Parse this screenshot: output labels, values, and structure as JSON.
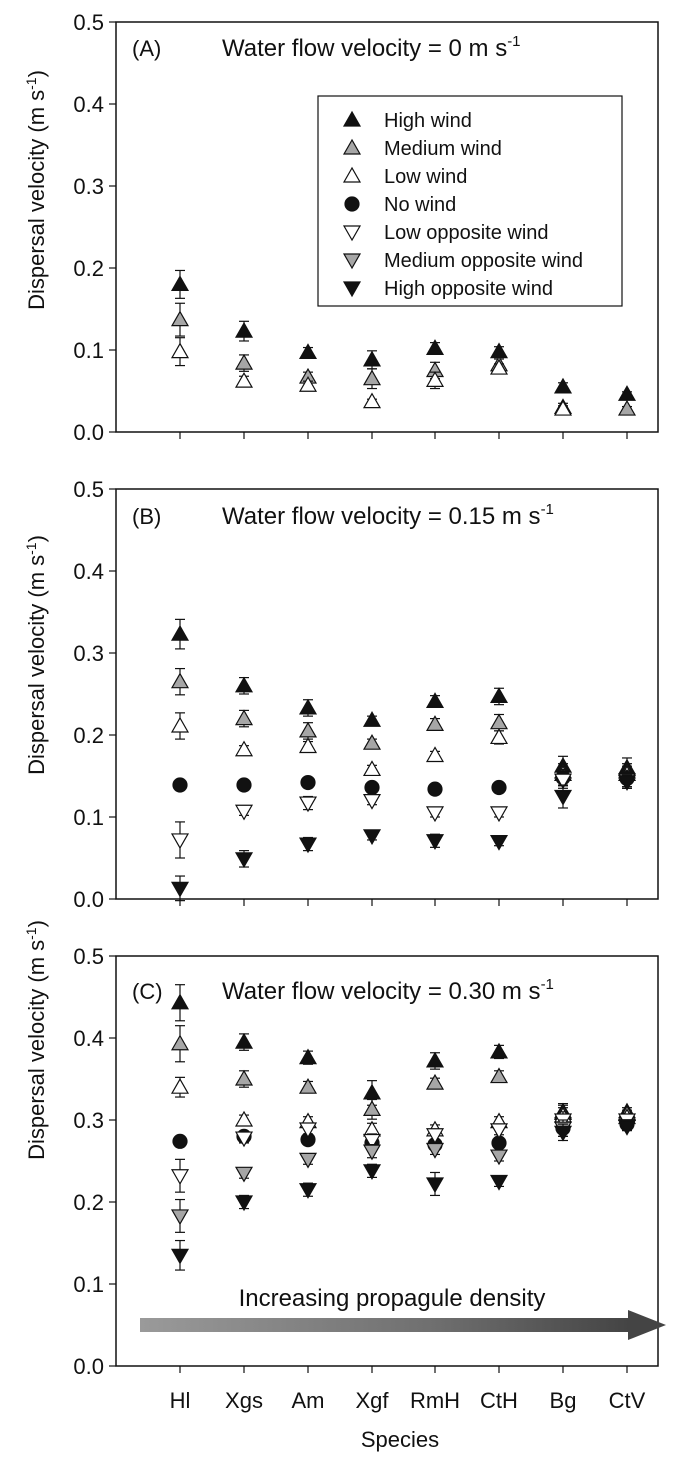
{
  "species_axis_label": "Species",
  "y_axis_label": "Dispersal velocity (m s",
  "y_axis_label_sup": "-1",
  "y_axis_label_tail": ")",
  "legend": {
    "entries": [
      {
        "key": "high_wind",
        "label": "High wind",
        "marker": "triangle-up",
        "color": "#111111"
      },
      {
        "key": "medium_wind",
        "label": "Medium wind",
        "marker": "triangle-up",
        "color": "#a6a6a6"
      },
      {
        "key": "low_wind",
        "label": "Low wind",
        "marker": "triangle-up",
        "color": "#ffffff"
      },
      {
        "key": "no_wind",
        "label": "No wind",
        "marker": "circle",
        "color": "#111111"
      },
      {
        "key": "low_opposite",
        "label": "Low opposite wind",
        "marker": "triangle-down",
        "color": "#ffffff"
      },
      {
        "key": "medium_opposite",
        "label": "Medium opposite wind",
        "marker": "triangle-down",
        "color": "#a6a6a6"
      },
      {
        "key": "high_opposite",
        "label": "High opposite wind",
        "marker": "triangle-down",
        "color": "#111111"
      }
    ]
  },
  "arrow_annotation": "Increasing propagule density",
  "chart_data": [
    {
      "type": "scatter",
      "panel_label": "(A)",
      "title": "Water flow velocity = 0 m s",
      "title_sup": "-1",
      "categories": [
        "Hl",
        "Xgs",
        "Am",
        "Xgf",
        "RmH",
        "CtH",
        "Bg",
        "CtV"
      ],
      "ylim": [
        0,
        0.5
      ],
      "yticks": [
        "0.0",
        "0.1",
        "0.2",
        "0.3",
        "0.4",
        "0.5"
      ],
      "series": [
        {
          "name": "High wind",
          "key": "high_wind",
          "values": [
            0.18,
            0.123,
            0.097,
            0.088,
            0.102,
            0.098,
            0.055,
            0.046
          ],
          "errors": [
            0.017,
            0.012,
            0.006,
            0.011,
            0.007,
            0.006,
            0.005,
            0.003
          ]
        },
        {
          "name": "Medium wind",
          "key": "medium_wind",
          "values": [
            0.137,
            0.084,
            0.067,
            0.065,
            0.075,
            0.082,
            0.03,
            0.028
          ],
          "errors": [
            0.02,
            0.01,
            0.006,
            0.012,
            0.01,
            0.007,
            0.005,
            0.003
          ]
        },
        {
          "name": "Low wind",
          "key": "low_wind",
          "values": [
            0.098,
            0.062,
            0.057,
            0.037,
            0.063,
            0.078,
            0.028,
            null
          ],
          "errors": [
            0.017,
            0.006,
            0.005,
            0.003,
            0.01,
            0.005,
            0.004,
            null
          ]
        }
      ]
    },
    {
      "type": "scatter",
      "panel_label": "(B)",
      "title": "Water flow velocity = 0.15 m s",
      "title_sup": "-1",
      "categories": [
        "Hl",
        "Xgs",
        "Am",
        "Xgf",
        "RmH",
        "CtH",
        "Bg",
        "CtV"
      ],
      "ylim": [
        0,
        0.5
      ],
      "yticks": [
        "0.0",
        "0.1",
        "0.2",
        "0.3",
        "0.4",
        "0.5"
      ],
      "series": [
        {
          "name": "High wind",
          "key": "high_wind",
          "values": [
            0.323,
            0.26,
            0.233,
            0.218,
            0.241,
            0.247,
            0.162,
            0.16
          ],
          "errors": [
            0.018,
            0.01,
            0.01,
            0.005,
            0.007,
            0.01,
            0.012,
            0.012
          ]
        },
        {
          "name": "Medium wind",
          "key": "medium_wind",
          "values": [
            0.265,
            0.22,
            0.205,
            0.19,
            0.213,
            0.215,
            0.155,
            0.155
          ],
          "errors": [
            0.016,
            0.01,
            0.01,
            0.005,
            0.007,
            0.01,
            0.01,
            0.01
          ]
        },
        {
          "name": "Low wind",
          "key": "low_wind",
          "values": [
            0.211,
            0.182,
            0.186,
            0.158,
            0.175,
            0.197,
            0.152,
            0.152
          ],
          "errors": [
            0.016,
            0.005,
            0.006,
            0.005,
            0.005,
            0.008,
            0.01,
            0.01
          ]
        },
        {
          "name": "No wind",
          "key": "no_wind",
          "values": [
            0.139,
            0.139,
            0.142,
            0.136,
            0.134,
            0.136,
            0.148,
            0.147
          ],
          "errors": [
            0.005,
            0.005,
            0.005,
            0.005,
            0.005,
            0.005,
            0.01,
            0.01
          ]
        },
        {
          "name": "Low opposite wind",
          "key": "low_opposite",
          "values": [
            0.072,
            0.107,
            0.117,
            0.12,
            0.105,
            0.105,
            0.145,
            0.145
          ],
          "errors": [
            0.022,
            0.005,
            0.008,
            0.005,
            0.005,
            0.005,
            0.01,
            0.01
          ]
        },
        {
          "name": "High opposite wind",
          "key": "high_opposite",
          "values": [
            0.013,
            0.049,
            0.067,
            0.077,
            0.071,
            0.07,
            0.125,
            0.143
          ],
          "errors": [
            0.015,
            0.01,
            0.008,
            0.005,
            0.008,
            0.005,
            0.014,
            0.008
          ]
        }
      ]
    },
    {
      "type": "scatter",
      "panel_label": "(C)",
      "title": "Water flow velocity = 0.30 m s",
      "title_sup": "-1",
      "categories": [
        "Hl",
        "Xgs",
        "Am",
        "Xgf",
        "RmH",
        "CtH",
        "Bg",
        "CtV"
      ],
      "ylim": [
        0,
        0.5
      ],
      "yticks": [
        "0.0",
        "0.1",
        "0.2",
        "0.3",
        "0.4",
        "0.5"
      ],
      "series": [
        {
          "name": "High wind",
          "key": "high_wind",
          "values": [
            0.443,
            0.395,
            0.376,
            0.333,
            0.372,
            0.383,
            0.31,
            0.31
          ],
          "errors": [
            0.022,
            0.01,
            0.008,
            0.015,
            0.01,
            0.008,
            0.01,
            0.005
          ]
        },
        {
          "name": "Medium wind",
          "key": "medium_wind",
          "values": [
            0.393,
            0.35,
            0.34,
            0.313,
            0.345,
            0.353,
            0.308,
            0.307
          ],
          "errors": [
            0.022,
            0.01,
            0.007,
            0.012,
            0.006,
            0.007,
            0.01,
            0.005
          ]
        },
        {
          "name": "Low wind",
          "key": "low_wind",
          "values": [
            0.34,
            0.3,
            0.298,
            0.288,
            0.288,
            0.298,
            0.305,
            0.303
          ],
          "errors": [
            0.012,
            0.006,
            0.006,
            0.008,
            0.006,
            0.006,
            0.01,
            0.005
          ]
        },
        {
          "name": "No wind",
          "key": "no_wind",
          "values": [
            0.274,
            0.28,
            0.276,
            0.272,
            0.27,
            0.272,
            0.29,
            0.295
          ],
          "errors": [
            0.006,
            0.006,
            0.006,
            0.006,
            0.006,
            0.006,
            0.01,
            0.005
          ]
        },
        {
          "name": "Low opposite wind",
          "key": "low_opposite",
          "values": [
            0.232,
            0.278,
            0.289,
            0.275,
            0.282,
            0.288,
            0.3,
            0.3
          ],
          "errors": [
            0.02,
            0.006,
            0.006,
            0.008,
            0.006,
            0.006,
            0.01,
            0.005
          ]
        },
        {
          "name": "Medium opposite wind",
          "key": "medium_opposite",
          "values": [
            0.183,
            0.235,
            0.252,
            0.262,
            0.264,
            0.256,
            0.29,
            0.293
          ],
          "errors": [
            0.02,
            0.006,
            0.006,
            0.008,
            0.006,
            0.006,
            0.01,
            0.005
          ]
        },
        {
          "name": "High opposite wind",
          "key": "high_opposite",
          "values": [
            0.135,
            0.2,
            0.215,
            0.238,
            0.222,
            0.225,
            0.285,
            0.292
          ],
          "errors": [
            0.018,
            0.008,
            0.008,
            0.008,
            0.014,
            0.006,
            0.01,
            0.005
          ]
        }
      ]
    }
  ]
}
